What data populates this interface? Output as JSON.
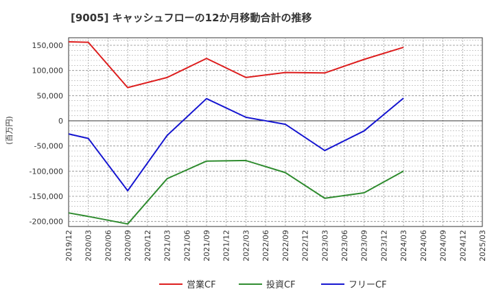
{
  "chart_data": {
    "type": "line",
    "title": "[9005]  キャッシュフローの12か月移動合計の推移",
    "ylabel": "(百万円)",
    "xlabel": "",
    "ylim": [
      -210000,
      165000
    ],
    "yticks": [
      150000,
      100000,
      50000,
      0,
      -50000,
      -100000,
      -150000,
      -200000
    ],
    "ytick_labels": [
      "150,000",
      "100,000",
      "50,000",
      "0",
      "-50,000",
      "-100,000",
      "-150,000",
      "-200,000"
    ],
    "x_labels": [
      "2019/12",
      "2020/03",
      "2020/06",
      "2020/09",
      "2020/12",
      "2021/03",
      "2021/06",
      "2021/09",
      "2021/12",
      "2022/03",
      "2022/06",
      "2022/09",
      "2022/12",
      "2023/03",
      "2023/06",
      "2023/09",
      "2023/12",
      "2024/03",
      "2024/06",
      "2024/09",
      "2024/12",
      "2025/03"
    ],
    "grid": true,
    "legend_position": "bottom",
    "series": [
      {
        "name": "営業CF",
        "color": "#dd1c1c",
        "points": [
          [
            0,
            157000
          ],
          [
            1,
            156000
          ],
          [
            3,
            66000
          ],
          [
            5,
            86000
          ],
          [
            7,
            124000
          ],
          [
            9,
            86000
          ],
          [
            11,
            96000
          ],
          [
            13,
            95000
          ],
          [
            15,
            122000
          ],
          [
            17,
            146000
          ]
        ]
      },
      {
        "name": "投資CF",
        "color": "#2e8b2e",
        "points": [
          [
            0,
            -183000
          ],
          [
            1,
            -190000
          ],
          [
            3,
            -205000
          ],
          [
            5,
            -115000
          ],
          [
            7,
            -80000
          ],
          [
            9,
            -79000
          ],
          [
            11,
            -103000
          ],
          [
            13,
            -154000
          ],
          [
            15,
            -143000
          ],
          [
            17,
            -100000
          ]
        ]
      },
      {
        "name": "フリーCF",
        "color": "#1414d0",
        "points": [
          [
            0,
            -26000
          ],
          [
            1,
            -35000
          ],
          [
            3,
            -139000
          ],
          [
            5,
            -29000
          ],
          [
            7,
            44000
          ],
          [
            9,
            7000
          ],
          [
            11,
            -7000
          ],
          [
            13,
            -59000
          ],
          [
            15,
            -20000
          ],
          [
            17,
            45000
          ]
        ]
      }
    ]
  }
}
